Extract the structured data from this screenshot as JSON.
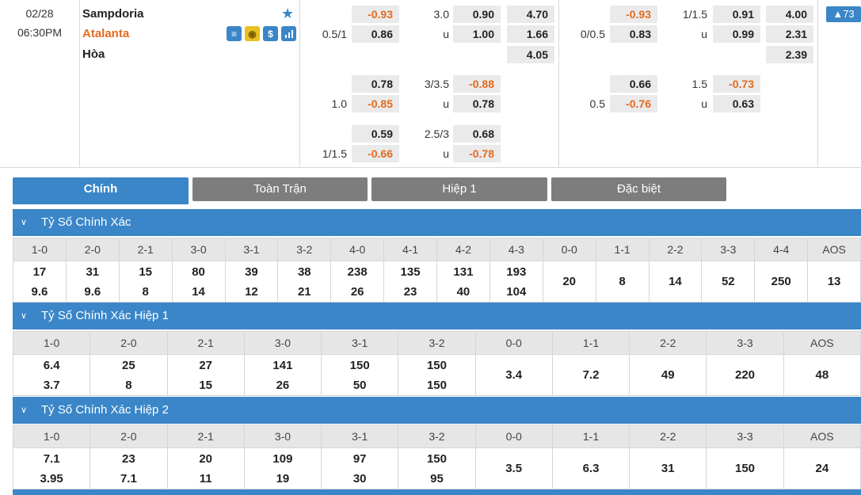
{
  "match": {
    "date": "02/28",
    "time": "06:30PM",
    "home": "Sampdoria",
    "away": "Atalanta",
    "draw": "Hòa",
    "badge": "▲73",
    "icons": [
      "list-icon",
      "coin-icon",
      "dollar-icon",
      "stats-icon"
    ]
  },
  "full": {
    "row1": {
      "hdp_home": "-0.93",
      "ou_line": "3.0",
      "ou_over": "0.90",
      "x12_home": "4.70"
    },
    "row2": {
      "hdp_line": "0.5/1",
      "hdp_away": "0.86",
      "ou_u": "u",
      "ou_under": "1.00",
      "x12_away": "1.66"
    },
    "row3": {
      "x12_draw": "4.05"
    },
    "row4": {
      "hdp_home": "0.78",
      "ou_line": "3/3.5",
      "ou_over": "-0.88"
    },
    "row5": {
      "hdp_line": "1.0",
      "hdp_away": "-0.85",
      "ou_u": "u",
      "ou_under": "0.78"
    },
    "row6": {
      "hdp_home": "0.59",
      "ou_line": "2.5/3",
      "ou_over": "0.68"
    },
    "row7": {
      "hdp_line": "1/1.5",
      "hdp_away": "-0.66",
      "ou_u": "u",
      "ou_under": "-0.78"
    }
  },
  "half": {
    "row1": {
      "hdp_home": "-0.93",
      "ou_line": "1/1.5",
      "ou_over": "0.91",
      "x12_home": "4.00"
    },
    "row2": {
      "hdp_line": "0/0.5",
      "hdp_away": "0.83",
      "ou_u": "u",
      "ou_under": "0.99",
      "x12_away": "2.31"
    },
    "row3": {
      "x12_draw": "2.39"
    },
    "row4": {
      "hdp_home": "0.66",
      "ou_line": "1.5",
      "ou_over": "-0.73"
    },
    "row5": {
      "hdp_line": "0.5",
      "hdp_away": "-0.76",
      "ou_u": "u",
      "ou_under": "0.63"
    }
  },
  "tabs": [
    "Chính",
    "Toàn Trận",
    "Hiệp 1",
    "Đặc biệt"
  ],
  "sections": [
    {
      "title": "Tỷ Số Chính Xác",
      "cells": [
        {
          "label": "1-0",
          "top": "17",
          "bottom": "9.6"
        },
        {
          "label": "2-0",
          "top": "31",
          "bottom": "9.6"
        },
        {
          "label": "2-1",
          "top": "15",
          "bottom": "8"
        },
        {
          "label": "3-0",
          "top": "80",
          "bottom": "14"
        },
        {
          "label": "3-1",
          "top": "39",
          "bottom": "12"
        },
        {
          "label": "3-2",
          "top": "38",
          "bottom": "21"
        },
        {
          "label": "4-0",
          "top": "238",
          "bottom": "26"
        },
        {
          "label": "4-1",
          "top": "135",
          "bottom": "23"
        },
        {
          "label": "4-2",
          "top": "131",
          "bottom": "40"
        },
        {
          "label": "4-3",
          "top": "193",
          "bottom": "104"
        },
        {
          "label": "0-0",
          "single": "20"
        },
        {
          "label": "1-1",
          "single": "8"
        },
        {
          "label": "2-2",
          "single": "14"
        },
        {
          "label": "3-3",
          "single": "52"
        },
        {
          "label": "4-4",
          "single": "250"
        },
        {
          "label": "AOS",
          "single": "13"
        }
      ]
    },
    {
      "title": "Tỷ Số Chính Xác Hiệp 1",
      "cells": [
        {
          "label": "1-0",
          "top": "6.4",
          "bottom": "3.7"
        },
        {
          "label": "2-0",
          "top": "25",
          "bottom": "8"
        },
        {
          "label": "2-1",
          "top": "27",
          "bottom": "15"
        },
        {
          "label": "3-0",
          "top": "141",
          "bottom": "26"
        },
        {
          "label": "3-1",
          "top": "150",
          "bottom": "50"
        },
        {
          "label": "3-2",
          "top": "150",
          "bottom": "150"
        },
        {
          "label": "0-0",
          "single": "3.4"
        },
        {
          "label": "1-1",
          "single": "7.2"
        },
        {
          "label": "2-2",
          "single": "49"
        },
        {
          "label": "3-3",
          "single": "220"
        },
        {
          "label": "AOS",
          "single": "48"
        }
      ]
    },
    {
      "title": "Tỷ Số Chính Xác Hiệp 2",
      "cells": [
        {
          "label": "1-0",
          "top": "7.1",
          "bottom": "3.95"
        },
        {
          "label": "2-0",
          "top": "23",
          "bottom": "7.1"
        },
        {
          "label": "2-1",
          "top": "20",
          "bottom": "11"
        },
        {
          "label": "3-0",
          "top": "109",
          "bottom": "19"
        },
        {
          "label": "3-1",
          "top": "97",
          "bottom": "30"
        },
        {
          "label": "3-2",
          "top": "150",
          "bottom": "95"
        },
        {
          "label": "0-0",
          "single": "3.5"
        },
        {
          "label": "1-1",
          "single": "6.3"
        },
        {
          "label": "2-2",
          "single": "31"
        },
        {
          "label": "3-3",
          "single": "150"
        },
        {
          "label": "AOS",
          "single": "24"
        }
      ]
    }
  ],
  "colors": {
    "accent": "#3a86c8",
    "negative": "#e46a1e",
    "away_team": "#e46a1e",
    "tab_inactive": "#7d7d7d"
  }
}
